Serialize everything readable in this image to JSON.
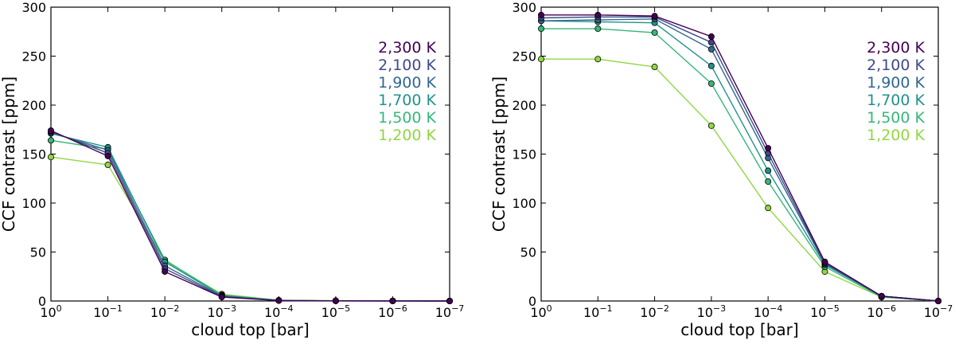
{
  "colors": {
    "2300": "#440154",
    "2100": "#3e4a89",
    "1900": "#31688e",
    "1700": "#21918c",
    "1500": "#35b779",
    "1200": "#90d743"
  },
  "chart_data": [
    {
      "type": "line",
      "xscale": "log",
      "x_reversed": true,
      "x": [
        "1e0",
        "1e-1",
        "1e-2",
        "1e-3",
        "1e-4",
        "1e-5",
        "1e-6",
        "1e-7"
      ],
      "x_exponents": [
        0,
        -1,
        -2,
        -3,
        -4,
        -5,
        -6,
        -7
      ],
      "xlabel": "cloud top [bar]",
      "ylabel": "CCF contrast [ppm]",
      "ylim": [
        0,
        300
      ],
      "yticks": [
        "0",
        "50",
        "100",
        "150",
        "200",
        "250",
        "300"
      ],
      "legend_position": "top-right",
      "series": [
        {
          "name": "2,300 K",
          "key": "2300",
          "values": [
            174,
            148,
            30,
            4,
            0.5,
            0.2,
            0.1,
            0
          ]
        },
        {
          "name": "2,100 K",
          "key": "2100",
          "values": [
            173,
            151,
            33,
            4.5,
            0.5,
            0.2,
            0.1,
            0
          ]
        },
        {
          "name": "1,900 K",
          "key": "1900",
          "values": [
            172,
            154,
            36,
            5,
            0.5,
            0.2,
            0.1,
            0
          ]
        },
        {
          "name": "1,700 K",
          "key": "1700",
          "values": [
            171,
            157,
            40,
            5.5,
            0.6,
            0.2,
            0.1,
            0
          ]
        },
        {
          "name": "1,500 K",
          "key": "1500",
          "values": [
            164,
            155,
            42,
            6,
            0.7,
            0.2,
            0.1,
            0
          ]
        },
        {
          "name": "1,200 K",
          "key": "1200",
          "values": [
            147,
            139,
            41,
            7,
            0.8,
            0.3,
            0.1,
            0
          ]
        }
      ]
    },
    {
      "type": "line",
      "xscale": "log",
      "x_reversed": true,
      "x": [
        "1e0",
        "1e-1",
        "1e-2",
        "1e-3",
        "1e-4",
        "1e-5",
        "1e-6",
        "1e-7"
      ],
      "x_exponents": [
        0,
        -1,
        -2,
        -3,
        -4,
        -5,
        -6,
        -7
      ],
      "xlabel": "cloud top [bar]",
      "ylabel": "CCF contrast [ppm]",
      "ylim": [
        0,
        300
      ],
      "yticks": [
        "0",
        "50",
        "100",
        "150",
        "200",
        "250",
        "300"
      ],
      "legend_position": "top-right",
      "series": [
        {
          "name": "2,300 K",
          "key": "2300",
          "values": [
            292,
            292,
            291,
            270,
            156,
            40,
            5,
            0
          ]
        },
        {
          "name": "2,100 K",
          "key": "2100",
          "values": [
            289,
            290,
            290,
            264,
            151,
            39,
            5,
            0
          ]
        },
        {
          "name": "1,900 K",
          "key": "1900",
          "values": [
            286,
            287,
            288,
            257,
            146,
            38,
            5,
            0
          ]
        },
        {
          "name": "1,700 K",
          "key": "1700",
          "values": [
            286,
            285,
            284,
            240,
            133,
            37,
            5,
            0
          ]
        },
        {
          "name": "1,500 K",
          "key": "1500",
          "values": [
            278,
            278,
            274,
            222,
            122,
            35,
            4,
            0
          ]
        },
        {
          "name": "1,200 K",
          "key": "1200",
          "values": [
            247,
            247,
            239,
            179,
            95,
            30,
            4,
            0
          ]
        }
      ]
    }
  ]
}
